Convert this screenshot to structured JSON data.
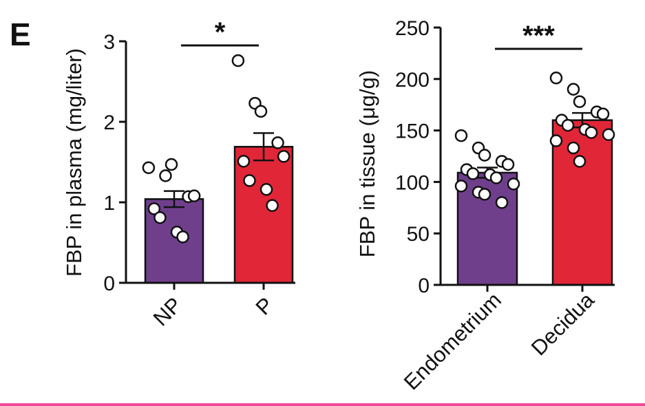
{
  "panel_label": "E",
  "colors": {
    "purple": "#6f3f8c",
    "red": "#e12638",
    "rule": "#f2479a"
  },
  "chart_data": [
    {
      "type": "bar",
      "title": "",
      "xlabel": "",
      "ylabel": "FBP in plasma (mg/liter)",
      "ylim": [
        0,
        3
      ],
      "yticks": [
        0,
        1,
        2,
        3
      ],
      "categories": [
        "NP",
        "P"
      ],
      "values": [
        1.04,
        1.69
      ],
      "sem": [
        0.1,
        0.17
      ],
      "significance": "*",
      "points": [
        [
          1.43,
          1.33,
          1.47,
          1.07,
          1.08,
          0.92,
          0.81,
          0.63,
          0.57
        ],
        [
          2.76,
          2.23,
          2.13,
          1.74,
          1.57,
          1.51,
          1.27,
          1.16,
          0.96
        ]
      ]
    },
    {
      "type": "bar",
      "title": "",
      "xlabel": "",
      "ylabel": "FBP in tissue (μg/g)",
      "ylim": [
        0,
        250
      ],
      "yticks": [
        0,
        50,
        100,
        150,
        200,
        250
      ],
      "categories": [
        "Endometrium",
        "Decidua"
      ],
      "values": [
        109,
        160
      ],
      "sem": [
        5,
        7
      ],
      "significance": "***",
      "points": [
        [
          145,
          133,
          126,
          120,
          117,
          112,
          108,
          107,
          104,
          98,
          96,
          90,
          88,
          80
        ],
        [
          201,
          190,
          178,
          168,
          166,
          160,
          155,
          151,
          148,
          146,
          140,
          133,
          120
        ]
      ]
    }
  ]
}
